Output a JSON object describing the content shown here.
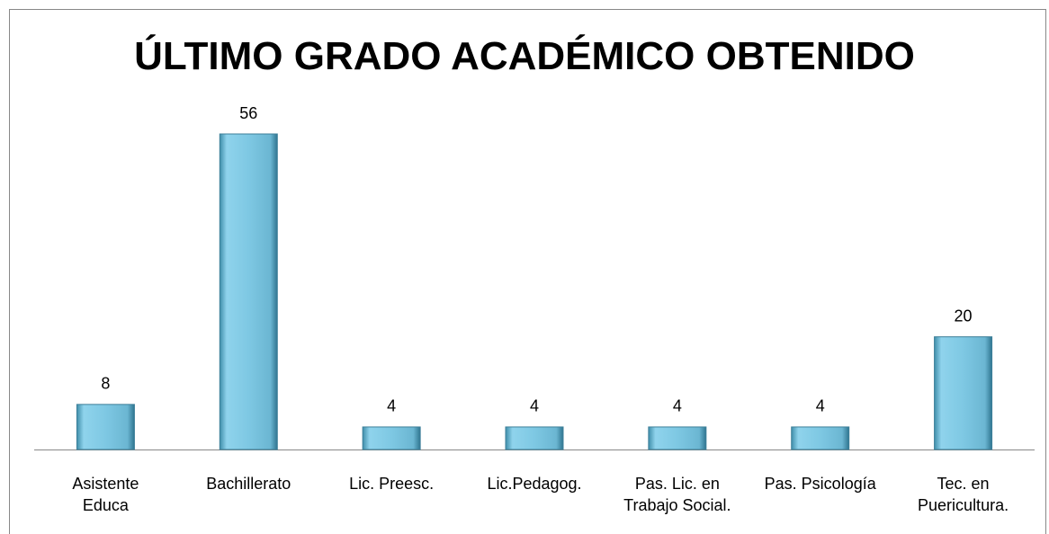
{
  "chart_data": {
    "type": "bar",
    "title": "ÚLTIMO GRADO ACADÉMICO OBTENIDO",
    "categories": [
      "Asistente\nEduca",
      "Bachillerato",
      "Lic. Preesc.",
      "Lic.Pedagog.",
      "Pas. Lic. en Trabajo Social.",
      "Pas. Psicología",
      "Tec. en Puericultura."
    ],
    "values": [
      8,
      56,
      4,
      4,
      4,
      4,
      20
    ],
    "color": "#7ec8e3"
  }
}
